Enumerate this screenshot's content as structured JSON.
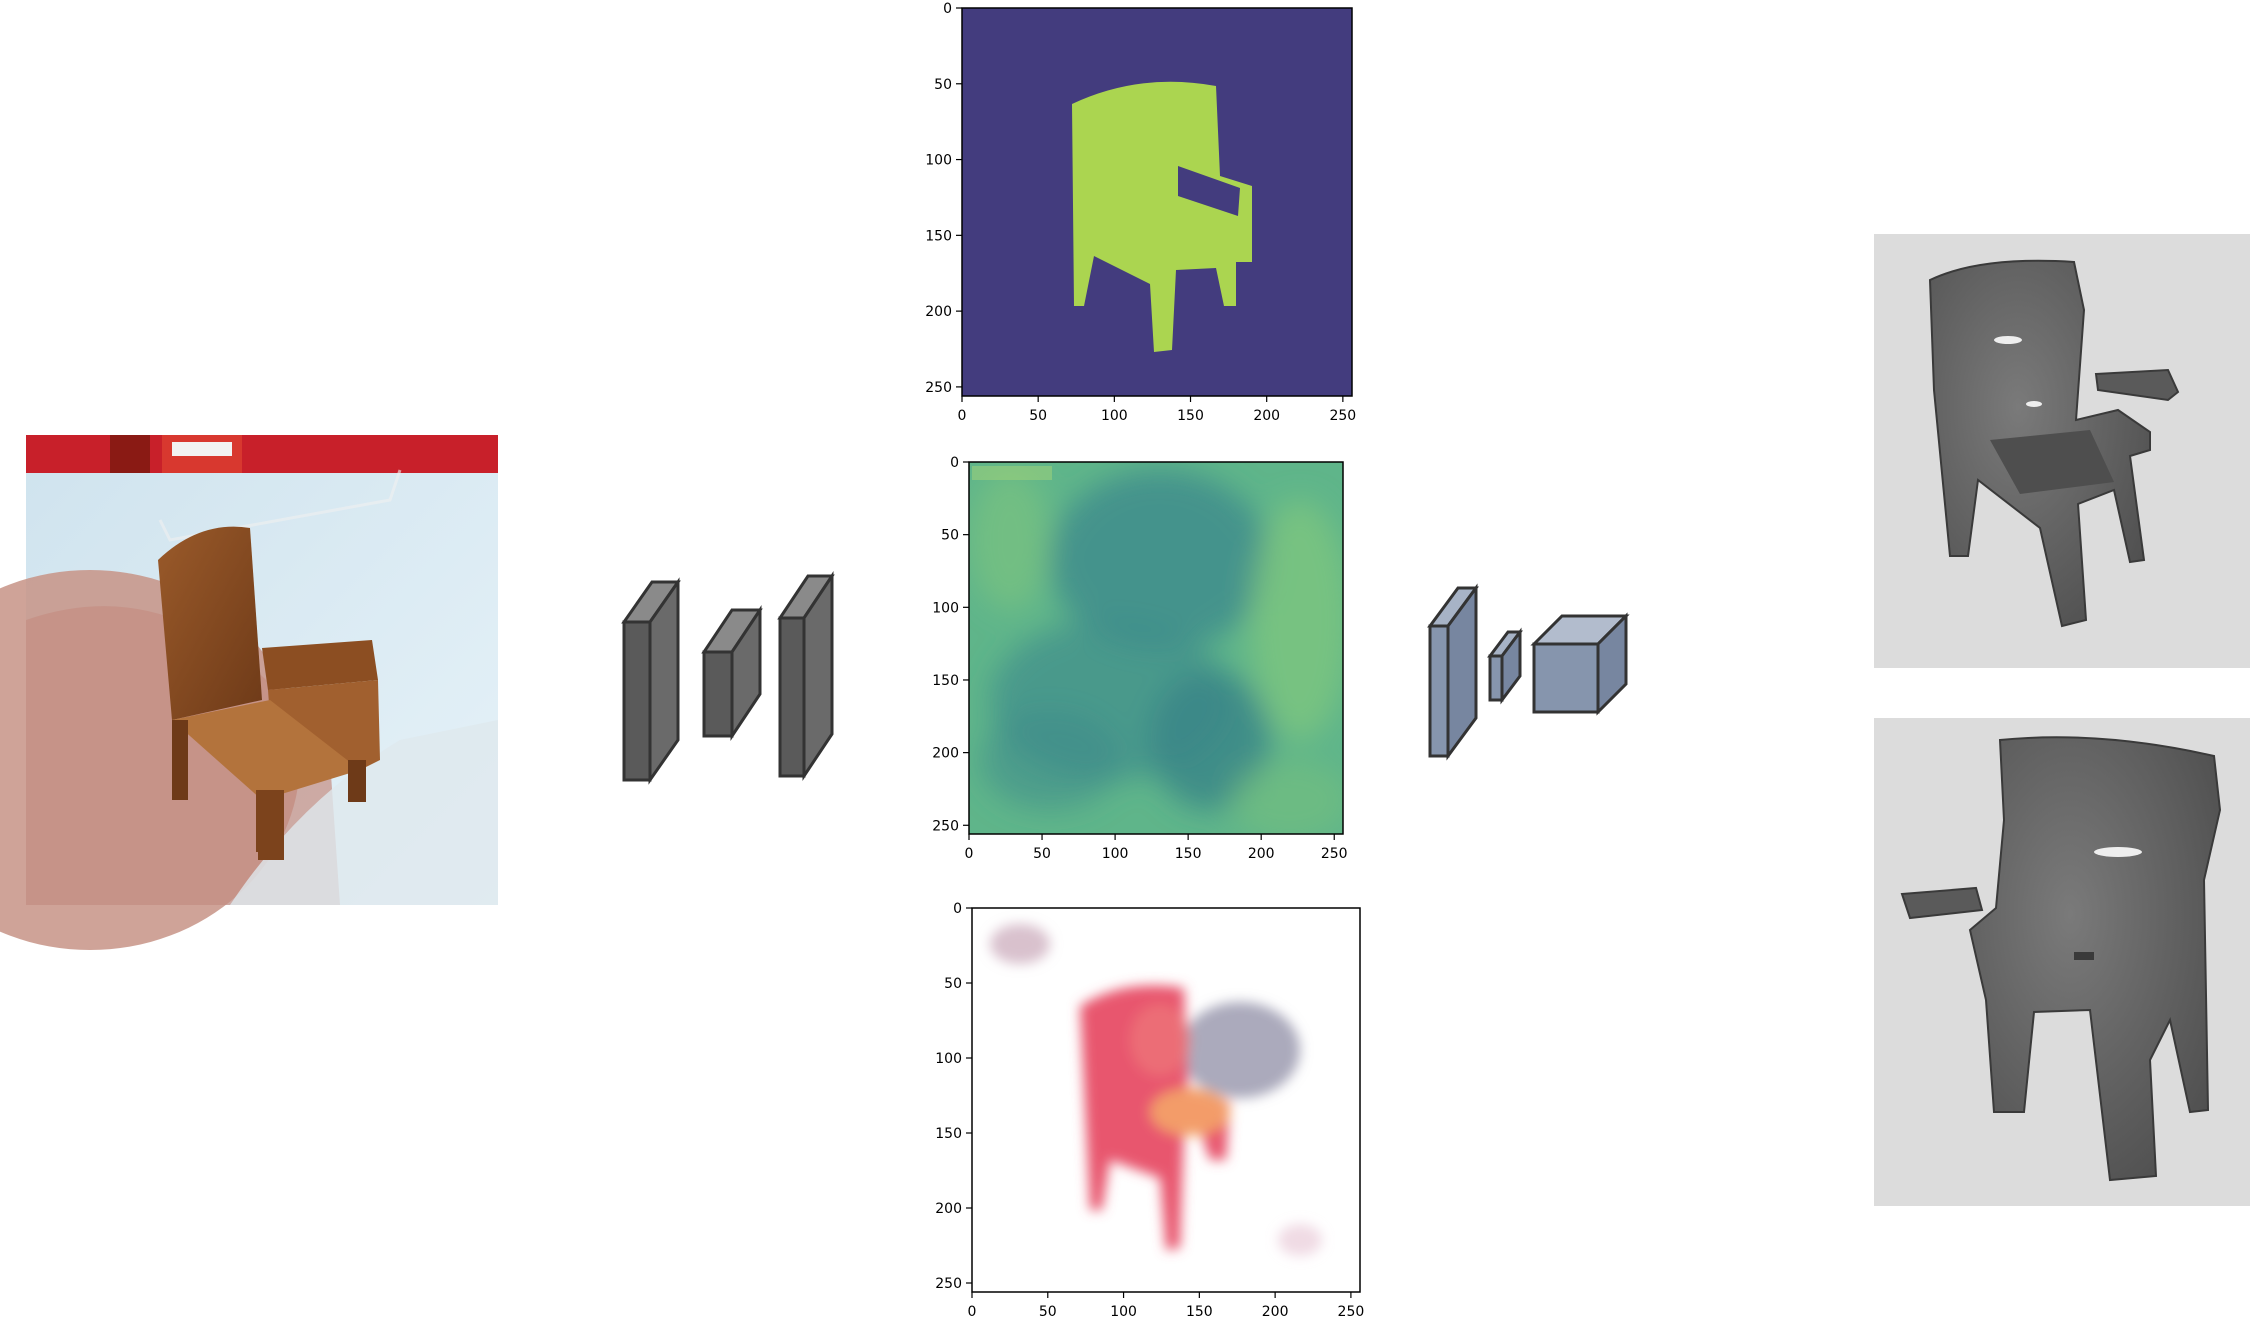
{
  "plots": [
    {
      "name": "silhouette-mask-plot",
      "x_ticks": [
        "0",
        "50",
        "100",
        "150",
        "200",
        "250"
      ],
      "y_ticks": [
        "0",
        "50",
        "100",
        "150",
        "200",
        "250"
      ],
      "xlim": [
        0,
        256
      ],
      "ylim": [
        0,
        256
      ],
      "background_color": "#433c7e",
      "foreground_color": "#abd550"
    },
    {
      "name": "depth-map-plot",
      "x_ticks": [
        "0",
        "50",
        "100",
        "150",
        "200",
        "250"
      ],
      "y_ticks": [
        "0",
        "50",
        "100",
        "150",
        "200",
        "250"
      ],
      "xlim": [
        0,
        256
      ],
      "ylim": [
        0,
        256
      ],
      "colors": [
        "#5fb58a",
        "#3f8d8c",
        "#80c77e"
      ]
    },
    {
      "name": "normal-map-plot",
      "x_ticks": [
        "0",
        "50",
        "100",
        "150",
        "200",
        "250"
      ],
      "y_ticks": [
        "0",
        "50",
        "100",
        "150",
        "200",
        "250"
      ],
      "xlim": [
        0,
        256
      ],
      "ylim": [
        0,
        256
      ],
      "colors": [
        "#ffffff",
        "#e8566e",
        "#f4a468"
      ]
    }
  ],
  "encoder_color": "#5a5a5a",
  "decoder_color": "#8695ad",
  "input_image": {
    "icon": "wooden-chair-photo"
  },
  "outputs": [
    {
      "icon": "reconstructed-chair-view-1"
    },
    {
      "icon": "reconstructed-chair-view-2"
    }
  ]
}
